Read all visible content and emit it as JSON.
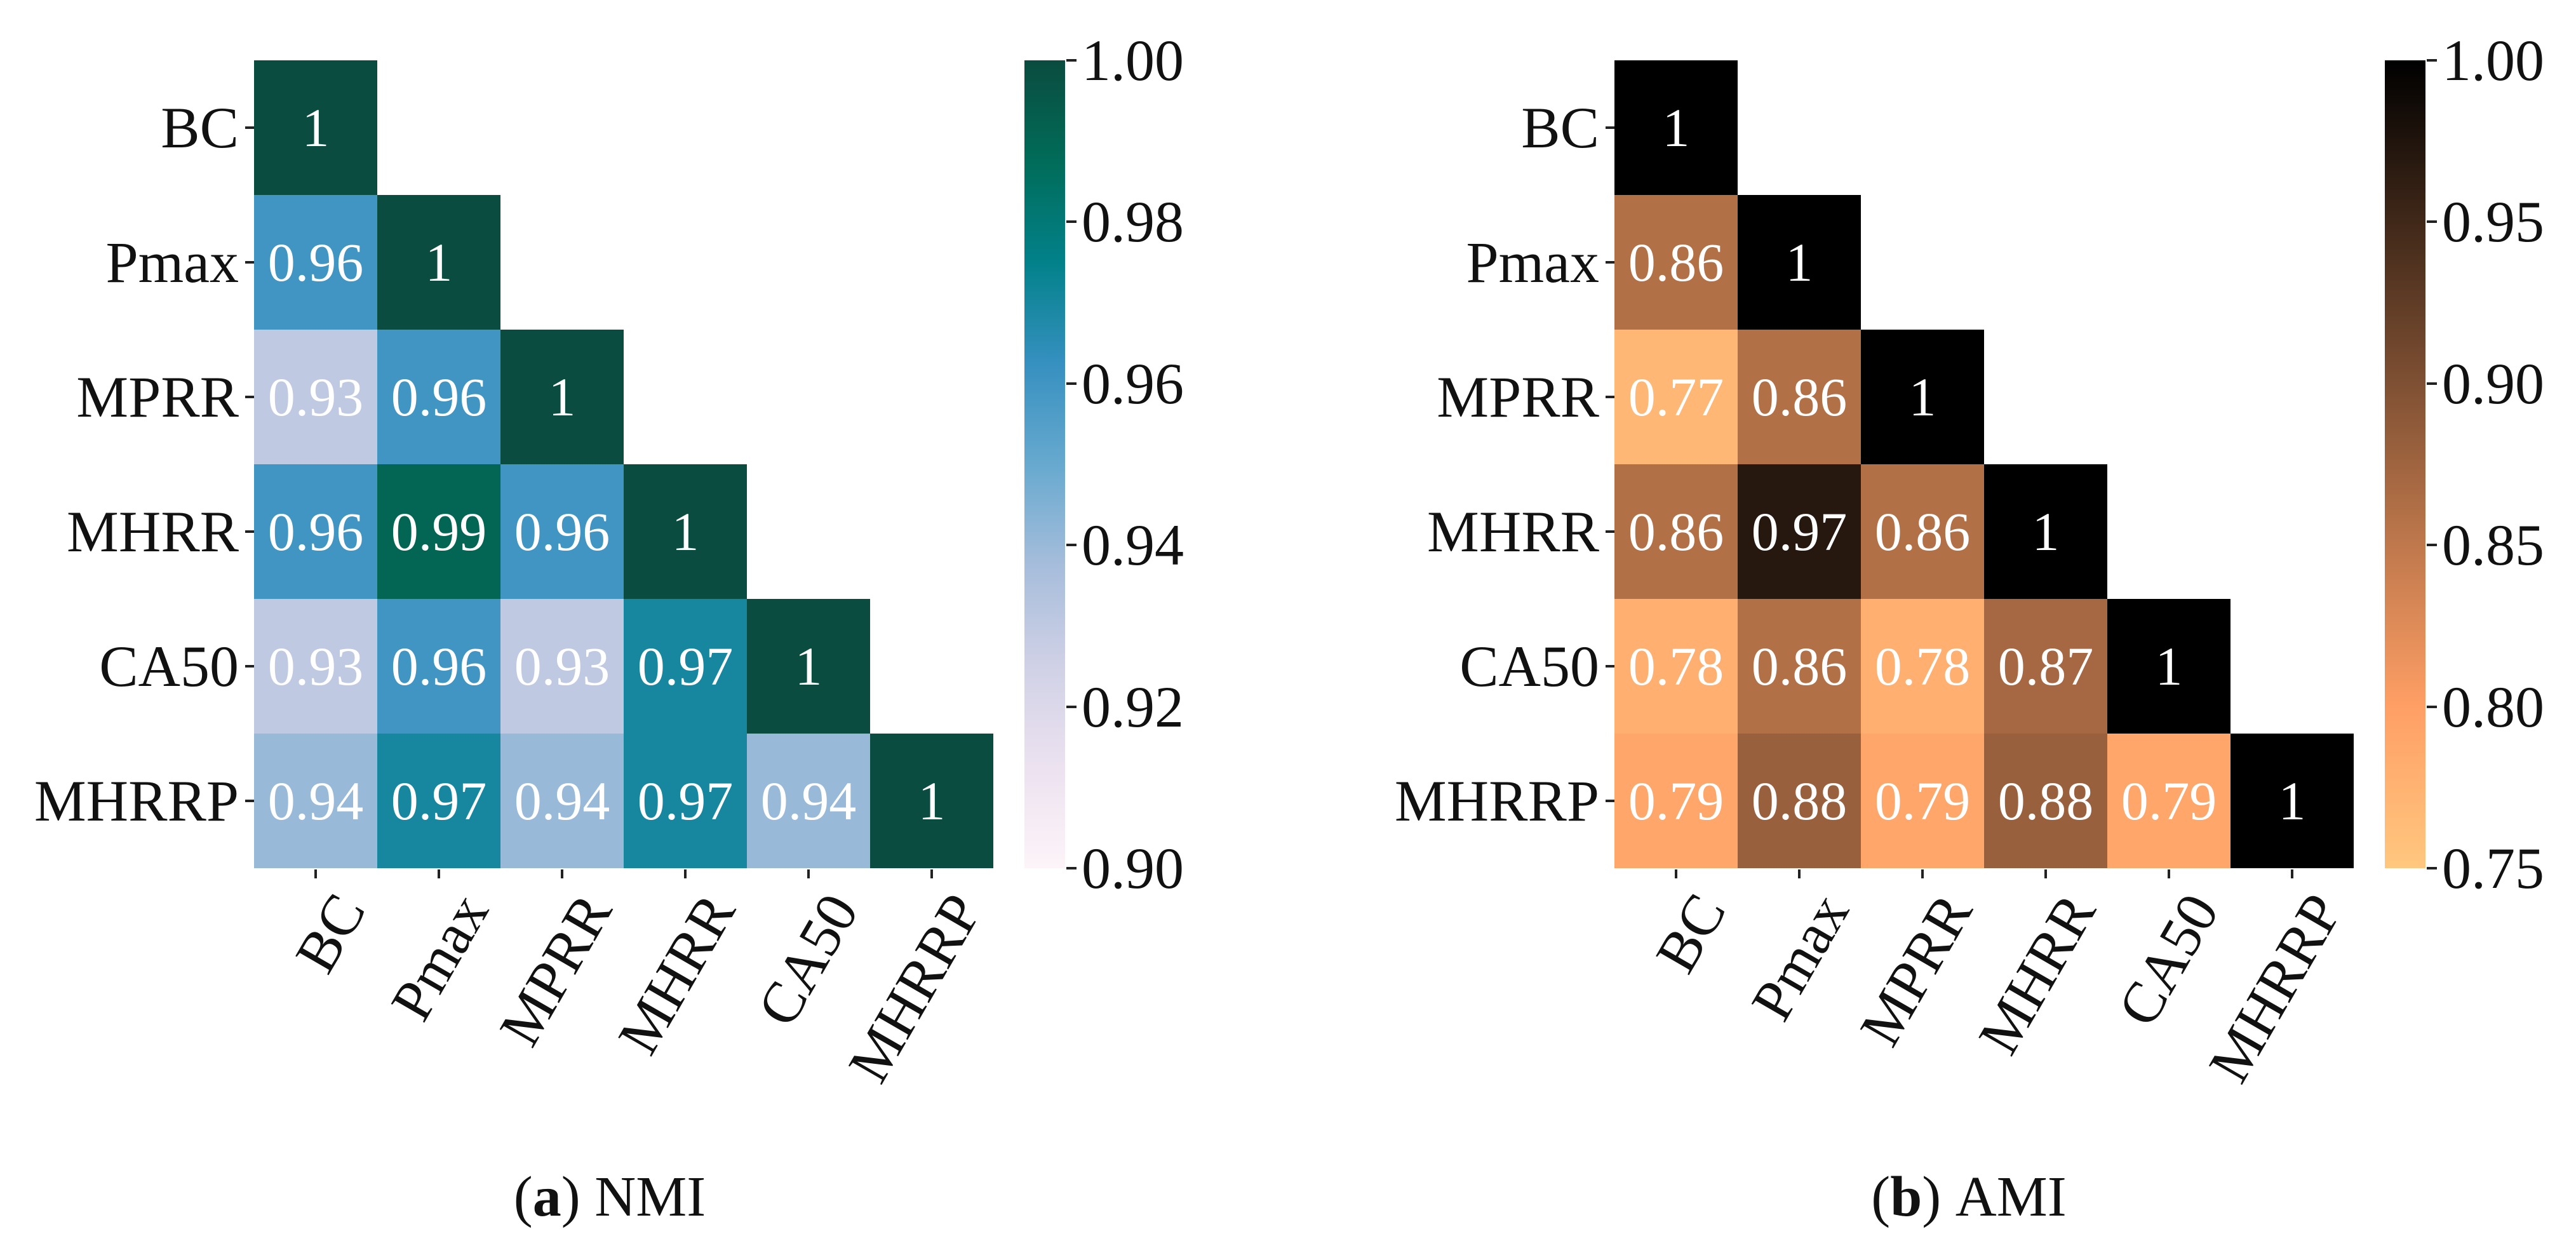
{
  "chart_data": [
    {
      "type": "heatmap",
      "subtype": "lower-triangular-correlation",
      "caption": {
        "lead": "(",
        "letter": "a",
        "close": ")",
        "title": "NMI"
      },
      "labels": [
        "BC",
        "Pmax",
        "MPRR",
        "MHRR",
        "CA50",
        "MHRRP"
      ],
      "matrix": [
        [
          1
        ],
        [
          0.96,
          1
        ],
        [
          0.93,
          0.96,
          1
        ],
        [
          0.96,
          0.99,
          0.96,
          1
        ],
        [
          0.93,
          0.96,
          0.93,
          0.97,
          1
        ],
        [
          0.94,
          0.97,
          0.94,
          0.97,
          0.94,
          1
        ]
      ],
      "vmin": 0.9,
      "vmax": 1.0,
      "colorbar_ticks": [
        "1.00",
        "0.98",
        "0.96",
        "0.94",
        "0.92",
        "0.90"
      ],
      "colormap_name": "PuBuGn",
      "colormap_stops_max_to_min": [
        "#0a4c3f",
        "#016c59",
        "#02818a",
        "#3690c0",
        "#67a9cf",
        "#a6bddb",
        "#d0d1e6",
        "#ece2f0",
        "#fdf4f9"
      ],
      "annotation_text_color": "#ffffff",
      "grid": false,
      "legend_position": "right-colorbar"
    },
    {
      "type": "heatmap",
      "subtype": "lower-triangular-correlation",
      "caption": {
        "lead": "(",
        "letter": "b",
        "close": ")",
        "title": "AMI"
      },
      "labels": [
        "BC",
        "Pmax",
        "MPRR",
        "MHRR",
        "CA50",
        "MHRRP"
      ],
      "matrix": [
        [
          1
        ],
        [
          0.86,
          1
        ],
        [
          0.77,
          0.86,
          1
        ],
        [
          0.86,
          0.97,
          0.86,
          1
        ],
        [
          0.78,
          0.86,
          0.78,
          0.87,
          1
        ],
        [
          0.79,
          0.88,
          0.79,
          0.88,
          0.79,
          1
        ]
      ],
      "vmin": 0.75,
      "vmax": 1.0,
      "colorbar_ticks": [
        "1.00",
        "0.95",
        "0.90",
        "0.85",
        "0.80",
        "0.75"
      ],
      "colormap_name": "copper_r",
      "colormap_stops_max_to_min": [
        "#000000",
        "#402819",
        "#7f5033",
        "#bf784c",
        "#ff9f65",
        "#ffc77f"
      ],
      "annotation_text_color": "#ffffff",
      "grid": false,
      "legend_position": "right-colorbar"
    }
  ],
  "figure": {
    "background_color": "#ffffff",
    "text_color": "#111111"
  }
}
